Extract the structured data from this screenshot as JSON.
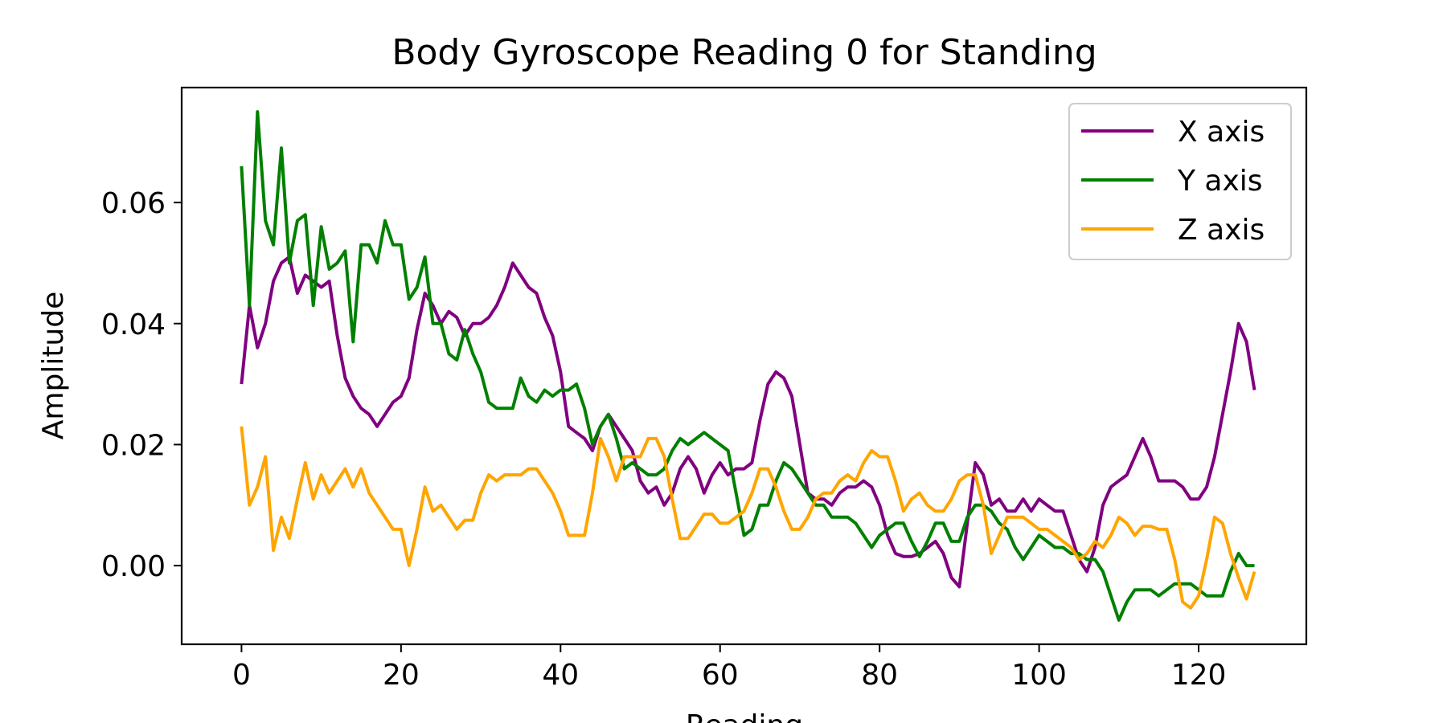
{
  "chart_data": {
    "type": "line",
    "title": "Body Gyroscope Reading 0 for Standing",
    "xlabel": "Reading",
    "ylabel": "Amplitude",
    "xlim": [
      -7.5,
      133.5
    ],
    "ylim": [
      -0.013,
      0.079
    ],
    "xticks": [
      0,
      20,
      40,
      60,
      80,
      100,
      120
    ],
    "yticks": [
      0.0,
      0.02,
      0.04,
      0.06
    ],
    "ytick_labels": [
      "0.00",
      "0.02",
      "0.04",
      "0.06"
    ],
    "grid": false,
    "legend_position": "top-right",
    "series": [
      {
        "name": "X axis",
        "color": "#800080",
        "values": [
          0.03,
          0.043,
          0.036,
          0.04,
          0.047,
          0.05,
          0.051,
          0.045,
          0.048,
          0.047,
          0.046,
          0.047,
          0.038,
          0.031,
          0.028,
          0.026,
          0.025,
          0.023,
          0.025,
          0.027,
          0.028,
          0.031,
          0.039,
          0.045,
          0.043,
          0.04,
          0.042,
          0.041,
          0.038,
          0.04,
          0.04,
          0.041,
          0.043,
          0.046,
          0.05,
          0.048,
          0.046,
          0.045,
          0.041,
          0.038,
          0.032,
          0.023,
          0.022,
          0.021,
          0.019,
          0.023,
          0.025,
          0.023,
          0.021,
          0.019,
          0.014,
          0.012,
          0.013,
          0.01,
          0.012,
          0.016,
          0.018,
          0.016,
          0.012,
          0.015,
          0.017,
          0.015,
          0.016,
          0.016,
          0.017,
          0.024,
          0.03,
          0.032,
          0.031,
          0.028,
          0.02,
          0.012,
          0.011,
          0.011,
          0.01,
          0.012,
          0.013,
          0.013,
          0.014,
          0.013,
          0.01,
          0.005,
          0.002,
          0.0015,
          0.0015,
          0.002,
          0.003,
          0.004,
          0.002,
          -0.002,
          -0.0035,
          0.007,
          0.017,
          0.015,
          0.01,
          0.011,
          0.009,
          0.009,
          0.011,
          0.009,
          0.011,
          0.01,
          0.009,
          0.009,
          0.005,
          0.001,
          -0.001,
          0.003,
          0.01,
          0.013,
          0.014,
          0.015,
          0.018,
          0.021,
          0.018,
          0.014,
          0.014,
          0.014,
          0.013,
          0.011,
          0.011,
          0.013,
          0.018,
          0.025,
          0.032,
          0.04,
          0.037,
          0.029
        ]
      },
      {
        "name": "Y axis",
        "color": "#008000",
        "values": [
          0.066,
          0.043,
          0.075,
          0.057,
          0.053,
          0.069,
          0.05,
          0.057,
          0.058,
          0.043,
          0.056,
          0.049,
          0.05,
          0.052,
          0.037,
          0.053,
          0.053,
          0.05,
          0.057,
          0.053,
          0.053,
          0.044,
          0.046,
          0.051,
          0.04,
          0.04,
          0.035,
          0.034,
          0.039,
          0.035,
          0.032,
          0.027,
          0.026,
          0.026,
          0.026,
          0.031,
          0.028,
          0.027,
          0.029,
          0.028,
          0.029,
          0.029,
          0.03,
          0.026,
          0.02,
          0.023,
          0.025,
          0.021,
          0.016,
          0.017,
          0.016,
          0.015,
          0.015,
          0.016,
          0.019,
          0.021,
          0.02,
          0.021,
          0.022,
          0.021,
          0.02,
          0.019,
          0.012,
          0.005,
          0.006,
          0.01,
          0.01,
          0.014,
          0.017,
          0.016,
          0.014,
          0.012,
          0.01,
          0.01,
          0.008,
          0.008,
          0.008,
          0.007,
          0.005,
          0.003,
          0.005,
          0.006,
          0.007,
          0.007,
          0.004,
          0.0015,
          0.004,
          0.007,
          0.007,
          0.004,
          0.004,
          0.008,
          0.01,
          0.01,
          0.009,
          0.007,
          0.006,
          0.003,
          0.001,
          0.003,
          0.005,
          0.004,
          0.003,
          0.003,
          0.002,
          0.002,
          0.001,
          0.001,
          -0.001,
          -0.005,
          -0.009,
          -0.006,
          -0.004,
          -0.004,
          -0.004,
          -0.005,
          -0.004,
          -0.003,
          -0.003,
          -0.003,
          -0.004,
          -0.005,
          -0.005,
          -0.005,
          -0.001,
          0.002,
          0.0,
          0.0
        ]
      },
      {
        "name": "Z axis",
        "color": "#FFA500",
        "values": [
          0.023,
          0.01,
          0.013,
          0.018,
          0.0025,
          0.008,
          0.0045,
          0.011,
          0.017,
          0.011,
          0.015,
          0.012,
          0.014,
          0.016,
          0.013,
          0.016,
          0.012,
          0.01,
          0.008,
          0.006,
          0.006,
          0.0,
          0.006,
          0.013,
          0.009,
          0.01,
          0.008,
          0.006,
          0.0075,
          0.0075,
          0.012,
          0.015,
          0.014,
          0.015,
          0.015,
          0.015,
          0.016,
          0.016,
          0.014,
          0.012,
          0.009,
          0.005,
          0.005,
          0.005,
          0.012,
          0.021,
          0.018,
          0.014,
          0.018,
          0.018,
          0.018,
          0.021,
          0.021,
          0.018,
          0.011,
          0.0045,
          0.0045,
          0.0065,
          0.0085,
          0.0085,
          0.007,
          0.007,
          0.008,
          0.009,
          0.012,
          0.016,
          0.016,
          0.013,
          0.009,
          0.006,
          0.006,
          0.008,
          0.011,
          0.012,
          0.012,
          0.014,
          0.015,
          0.014,
          0.017,
          0.019,
          0.018,
          0.018,
          0.014,
          0.009,
          0.011,
          0.012,
          0.01,
          0.009,
          0.009,
          0.011,
          0.014,
          0.015,
          0.015,
          0.01,
          0.002,
          0.005,
          0.008,
          0.008,
          0.008,
          0.007,
          0.006,
          0.006,
          0.005,
          0.004,
          0.003,
          0.001,
          0.002,
          0.004,
          0.003,
          0.005,
          0.008,
          0.007,
          0.005,
          0.0065,
          0.0065,
          0.006,
          0.006,
          0.001,
          -0.006,
          -0.007,
          -0.005,
          0.001,
          0.008,
          0.007,
          0.002,
          -0.002,
          -0.0055,
          -0.001
        ]
      }
    ]
  }
}
